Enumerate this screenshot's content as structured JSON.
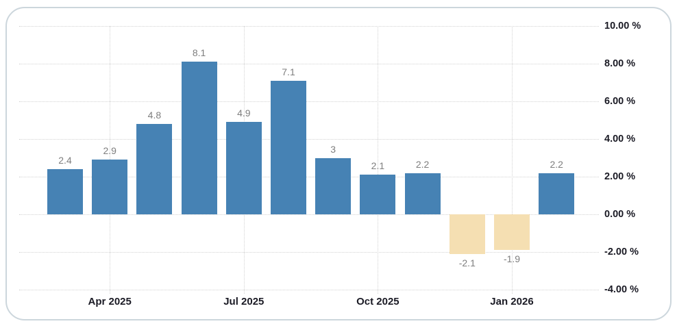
{
  "card": {
    "background": "#ffffff",
    "border_color": "#ccd6dc"
  },
  "chart_data": {
    "type": "bar",
    "title": "",
    "xlabel": "",
    "ylabel": "",
    "values": [
      2.4,
      2.9,
      4.8,
      8.1,
      4.9,
      7.1,
      3,
      2.1,
      2.2,
      -2.1,
      -1.9,
      2.2
    ],
    "bar_labels": [
      "2.4",
      "2.9",
      "4.8",
      "8.1",
      "4.9",
      "7.1",
      "3",
      "2.1",
      "2.2",
      "-2.1",
      "-1.9",
      "2.2"
    ],
    "x_ticks": [
      {
        "label": "Apr 2025",
        "bar_index": 1
      },
      {
        "label": "Jul 2025",
        "bar_index": 4
      },
      {
        "label": "Oct 2025",
        "bar_index": 7
      },
      {
        "label": "Jan 2026",
        "bar_index": 10
      }
    ],
    "y_ticks": [
      {
        "label": "10.00 %",
        "value": 10
      },
      {
        "label": "8.00 %",
        "value": 8
      },
      {
        "label": "6.00 %",
        "value": 6
      },
      {
        "label": "4.00 %",
        "value": 4
      },
      {
        "label": "2.00 %",
        "value": 2
      },
      {
        "label": "0.00 %",
        "value": 0
      },
      {
        "label": "-2.00 %",
        "value": -2
      },
      {
        "label": "-4.00 %",
        "value": -4
      }
    ],
    "ylim": [
      -4,
      10
    ],
    "grid": "dotted",
    "legend_position": "none",
    "positive_color": "#4682b4",
    "negative_color": "#f5dfb2",
    "value_label_color": "#7e7e7e",
    "axis_label_color": "#1a1a24",
    "grid_color": "#d2d2d2"
  }
}
